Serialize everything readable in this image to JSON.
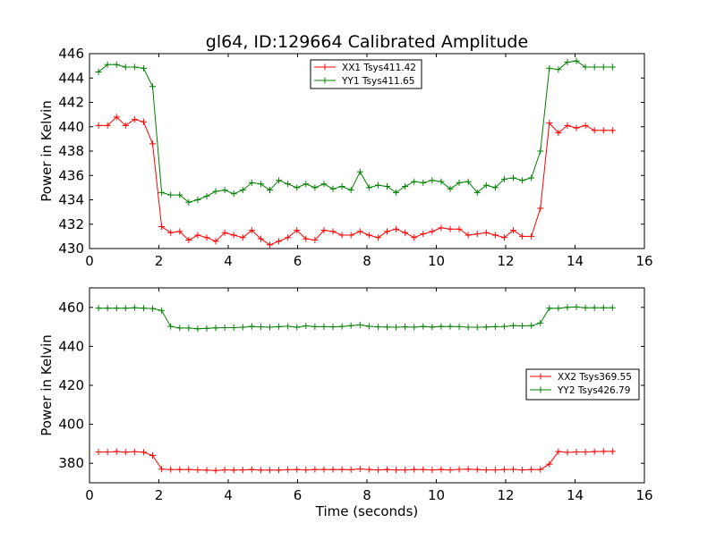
{
  "title": "gl64, ID:129664 Calibrated Amplitude",
  "chart_data": [
    {
      "type": "line",
      "title": "gl64, ID:129664 Calibrated Amplitude",
      "xlabel": "",
      "ylabel": "Power in Kelvin",
      "xlim": [
        0,
        16
      ],
      "ylim": [
        430,
        446
      ],
      "xticks": [
        0,
        2,
        4,
        6,
        8,
        10,
        12,
        14,
        16
      ],
      "yticks": [
        430,
        432,
        434,
        436,
        438,
        440,
        442,
        444,
        446
      ],
      "xtick_labels": [
        "0",
        "2",
        "4",
        "6",
        "8",
        "10",
        "12",
        "14",
        "16"
      ],
      "ytick_labels": [
        "430",
        "432",
        "434",
        "436",
        "438",
        "440",
        "442",
        "444",
        "446"
      ],
      "grid": false,
      "legend_position": "top-center",
      "x": [
        0.26,
        0.52,
        0.78,
        1.04,
        1.3,
        1.56,
        1.82,
        2.08,
        2.34,
        2.6,
        2.86,
        3.12,
        3.38,
        3.64,
        3.9,
        4.16,
        4.42,
        4.68,
        4.94,
        5.2,
        5.46,
        5.72,
        5.98,
        6.24,
        6.5,
        6.76,
        7.02,
        7.28,
        7.54,
        7.8,
        8.06,
        8.32,
        8.58,
        8.84,
        9.1,
        9.36,
        9.62,
        9.88,
        10.14,
        10.4,
        10.66,
        10.92,
        11.18,
        11.44,
        11.7,
        11.96,
        12.22,
        12.48,
        12.74,
        13.0,
        13.26,
        13.52,
        13.78,
        14.04,
        14.3,
        14.56,
        14.82,
        15.08
      ],
      "series": [
        {
          "name": "XX1 Tsys411.42",
          "color": "#ff0000",
          "values": [
            440.1,
            440.1,
            440.8,
            440.1,
            440.6,
            440.4,
            438.6,
            431.8,
            431.3,
            431.4,
            430.7,
            431.1,
            430.9,
            430.6,
            431.3,
            431.1,
            430.9,
            431.5,
            430.8,
            430.3,
            430.6,
            430.9,
            431.5,
            430.8,
            430.7,
            431.5,
            431.4,
            431.1,
            431.1,
            431.4,
            431.1,
            430.9,
            431.4,
            431.6,
            431.3,
            430.9,
            431.2,
            431.4,
            431.7,
            431.6,
            431.6,
            431.1,
            431.2,
            431.3,
            431.1,
            430.9,
            431.5,
            431.0,
            431.0,
            433.3,
            440.3,
            439.5,
            440.1,
            439.9,
            440.1,
            439.7,
            439.7,
            439.7
          ]
        },
        {
          "name": "YY1 Tsys411.65",
          "color": "#008000",
          "values": [
            444.5,
            445.1,
            445.1,
            444.9,
            444.9,
            444.8,
            443.3,
            434.6,
            434.4,
            434.4,
            433.8,
            434.0,
            434.3,
            434.7,
            434.8,
            434.5,
            434.8,
            435.4,
            435.3,
            434.8,
            435.6,
            435.3,
            435.0,
            435.3,
            435.0,
            435.3,
            434.9,
            435.1,
            434.8,
            436.3,
            435.0,
            435.2,
            435.1,
            434.6,
            435.1,
            435.5,
            435.4,
            435.6,
            435.5,
            434.9,
            435.4,
            435.5,
            434.6,
            435.2,
            435.0,
            435.7,
            435.8,
            435.6,
            435.8,
            438.0,
            444.8,
            444.7,
            445.3,
            445.4,
            444.9,
            444.9,
            444.9,
            444.9
          ]
        }
      ]
    },
    {
      "type": "line",
      "title": "",
      "xlabel": "Time (seconds)",
      "ylabel": "Power in Kelvin",
      "xlim": [
        0,
        16
      ],
      "ylim": [
        370,
        470
      ],
      "xticks": [
        0,
        2,
        4,
        6,
        8,
        10,
        12,
        14,
        16
      ],
      "yticks": [
        380,
        400,
        420,
        440,
        460
      ],
      "xtick_labels": [
        "0",
        "2",
        "4",
        "6",
        "8",
        "10",
        "12",
        "14",
        "16"
      ],
      "ytick_labels": [
        "380",
        "400",
        "420",
        "440",
        "460"
      ],
      "grid": false,
      "legend_position": "right",
      "x": [
        0.26,
        0.52,
        0.78,
        1.04,
        1.3,
        1.56,
        1.82,
        2.08,
        2.34,
        2.6,
        2.86,
        3.12,
        3.38,
        3.64,
        3.9,
        4.16,
        4.42,
        4.68,
        4.94,
        5.2,
        5.46,
        5.72,
        5.98,
        6.24,
        6.5,
        6.76,
        7.02,
        7.28,
        7.54,
        7.8,
        8.06,
        8.32,
        8.58,
        8.84,
        9.1,
        9.36,
        9.62,
        9.88,
        10.14,
        10.4,
        10.66,
        10.92,
        11.18,
        11.44,
        11.7,
        11.96,
        12.22,
        12.48,
        12.74,
        13.0,
        13.26,
        13.52,
        13.78,
        14.04,
        14.3,
        14.56,
        14.82,
        15.08
      ],
      "series": [
        {
          "name": "XX2 Tsys369.55",
          "color": "#ff0000",
          "values": [
            385.8,
            385.8,
            386.0,
            385.7,
            385.9,
            385.7,
            384.0,
            377.0,
            376.8,
            376.8,
            376.8,
            376.6,
            376.5,
            376.3,
            376.6,
            376.5,
            376.6,
            376.8,
            376.5,
            376.5,
            376.5,
            376.7,
            376.8,
            376.6,
            376.8,
            376.8,
            376.8,
            376.8,
            376.7,
            377.1,
            376.8,
            376.6,
            376.8,
            376.6,
            376.6,
            376.8,
            376.8,
            376.6,
            376.8,
            376.6,
            376.9,
            377.0,
            376.8,
            376.6,
            376.6,
            376.8,
            376.9,
            376.6,
            376.8,
            376.8,
            379.6,
            386.0,
            385.6,
            385.8,
            385.8,
            386.0,
            386.1,
            386.1
          ]
        },
        {
          "name": "YY2 Tsys426.79",
          "color": "#008000",
          "values": [
            459.6,
            459.6,
            459.6,
            459.6,
            459.8,
            459.6,
            459.4,
            458.4,
            450.2,
            449.4,
            449.4,
            449.0,
            449.2,
            449.5,
            449.6,
            449.6,
            449.8,
            450.2,
            450.0,
            449.8,
            450.1,
            450.3,
            449.8,
            450.5,
            450.1,
            450.1,
            450.0,
            450.2,
            450.6,
            451.0,
            450.3,
            450.0,
            449.9,
            449.8,
            450.0,
            449.8,
            450.2,
            449.9,
            450.2,
            450.2,
            450.1,
            449.8,
            449.8,
            449.9,
            450.1,
            450.2,
            450.6,
            450.5,
            450.6,
            452.0,
            459.6,
            459.5,
            460.0,
            460.2,
            459.8,
            459.8,
            459.8,
            459.8
          ]
        }
      ]
    }
  ]
}
